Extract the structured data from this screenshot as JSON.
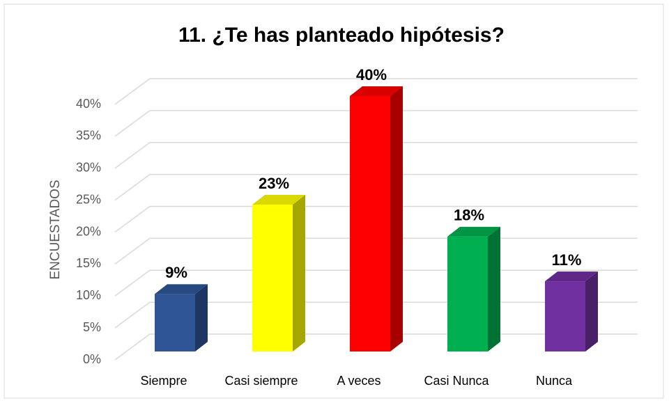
{
  "chart_data": {
    "type": "bar3d",
    "title": "11.  ¿Te has planteado  hipótesis?",
    "y_label": "ENCUESTADOS",
    "categories": [
      "Siempre",
      "Casi siempre",
      "A veces",
      "Casi Nunca",
      "Nunca"
    ],
    "values": [
      9,
      23,
      40,
      18,
      11
    ],
    "value_labels": [
      "9%",
      "23%",
      "40%",
      "18%",
      "11%"
    ],
    "colors": [
      "#2f5597",
      "#ffff00",
      "#ff0000",
      "#00b050",
      "#7030a0"
    ],
    "ylim": [
      0,
      40
    ],
    "yticks": [
      {
        "value": 0,
        "label": "0%"
      },
      {
        "value": 5,
        "label": "5%"
      },
      {
        "value": 10,
        "label": "10%"
      },
      {
        "value": 15,
        "label": "15%"
      },
      {
        "value": 20,
        "label": "20%"
      },
      {
        "value": 25,
        "label": "25%"
      },
      {
        "value": 30,
        "label": "30%"
      },
      {
        "value": 35,
        "label": "35%"
      },
      {
        "value": 40,
        "label": "40%"
      }
    ],
    "grid": true
  }
}
